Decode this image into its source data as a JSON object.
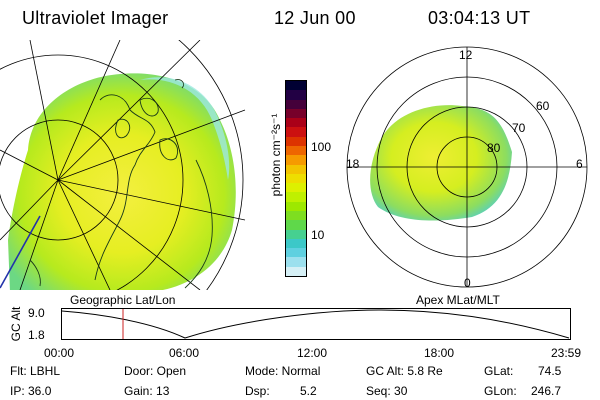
{
  "header": {
    "title": "Ultraviolet Imager",
    "date": "12 Jun 00",
    "time": "03:04:13 UT"
  },
  "colorbar": {
    "unit_label": "photon cm⁻²s⁻¹",
    "ticks": [
      "100",
      "10"
    ],
    "colors": [
      "#000033",
      "#220044",
      "#44003a",
      "#77002a",
      "#aa0018",
      "#cc1010",
      "#dd3300",
      "#ee6600",
      "#f69a00",
      "#f3c400",
      "#eede00",
      "#ddf000",
      "#bff000",
      "#9de800",
      "#7ede20",
      "#5fd84a",
      "#46d090",
      "#3cc8c8",
      "#5fd0e0",
      "#9ce0ee",
      "#d6f0f6"
    ]
  },
  "geo_panel": {
    "label": "Geographic Lat/Lon"
  },
  "polar_panel": {
    "label": "Apex MLat/MLT",
    "mlt_labels": {
      "top": "12",
      "left": "18",
      "right": "6",
      "bottom": "0"
    },
    "lat_labels": [
      "60",
      "70",
      "80"
    ]
  },
  "altitude_strip": {
    "axis_label": "GC Alt",
    "y_ticks": [
      "9.0",
      "1.8"
    ],
    "x_ticks": [
      "00:00",
      "06:00",
      "12:00",
      "18:00",
      "23:59"
    ]
  },
  "info": {
    "row1": {
      "flt": "Flt: LBHL",
      "door": "Door: Open",
      "mode": "Mode: Normal",
      "gcalt": "GC Alt: 5.8 Re",
      "glat_label": "GLat:",
      "glat_value": "74.5"
    },
    "row2": {
      "ip": "IP: 36.0",
      "gain": "Gain: 13",
      "dsp_label": "Dsp:",
      "dsp_value": "5.2",
      "seq": "Seq: 30",
      "glon_label": "GLon:",
      "glon_value": "246.7"
    }
  }
}
